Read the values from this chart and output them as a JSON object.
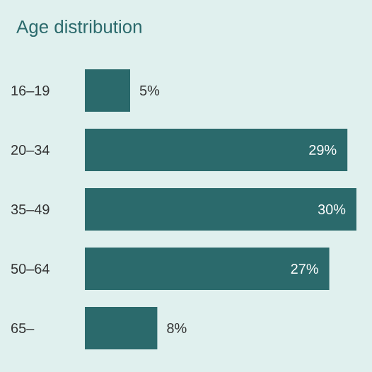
{
  "chart_data": {
    "type": "bar",
    "orientation": "horizontal",
    "title": "Age distribution",
    "categories": [
      "16–19",
      "20–34",
      "35–49",
      "50–64",
      "65–"
    ],
    "values": [
      5,
      29,
      30,
      27,
      8
    ],
    "value_labels": [
      "5%",
      "29%",
      "30%",
      "27%",
      "8%"
    ],
    "color": "#2b6a6c",
    "xlim": [
      0,
      30
    ],
    "tick_labels": "y"
  }
}
